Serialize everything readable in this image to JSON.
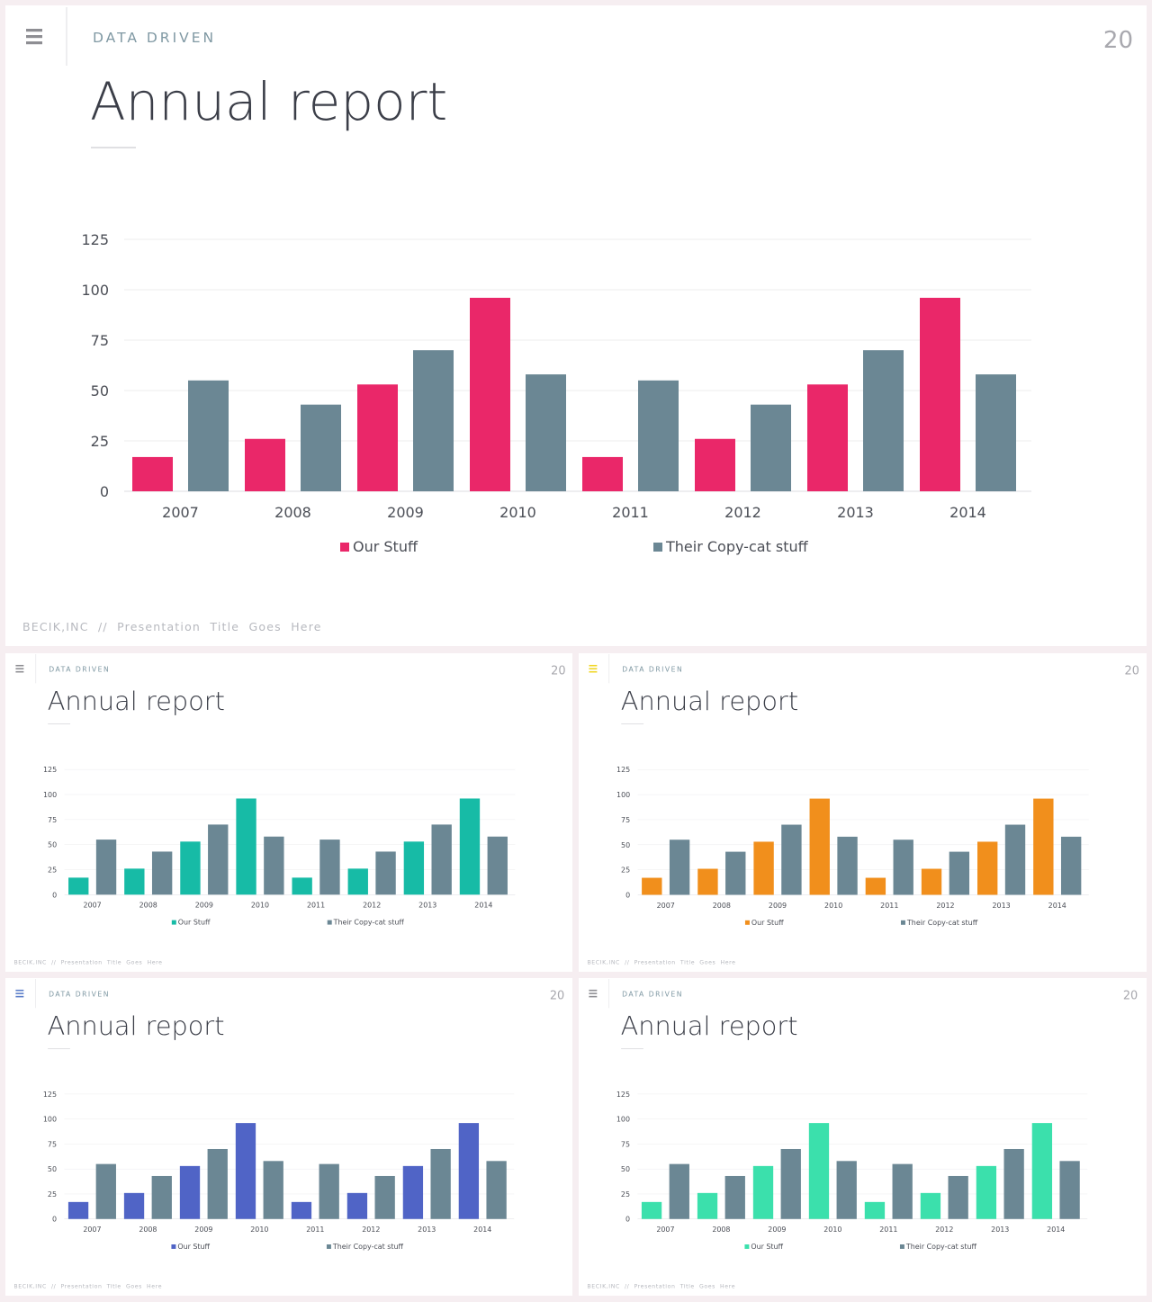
{
  "slide": {
    "section_label": "DATA DRIVEN",
    "title": "Annual report",
    "page_number": "20",
    "footer": "BECIK,INC  //  Presentation  Title  Goes  Here"
  },
  "colors": {
    "series_2": "#6b8794",
    "variants": [
      "#ea2769",
      "#17bba6",
      "#f18f1c",
      "#5064c6",
      "#3be0ac"
    ],
    "menu_icon": [
      "#8e8e93",
      "#8e8e93",
      "#f0d625",
      "#5b7ec9",
      "#8e8e93"
    ]
  },
  "chart_data": {
    "type": "bar",
    "categories": [
      "2007",
      "2008",
      "2009",
      "2010",
      "2011",
      "2012",
      "2013",
      "2014"
    ],
    "series": [
      {
        "name": "Our Stuff",
        "values": [
          17,
          26,
          53,
          96,
          17,
          26,
          53,
          96
        ]
      },
      {
        "name": "Their Copy-cat stuff",
        "values": [
          55,
          43,
          70,
          58,
          55,
          43,
          70,
          58
        ]
      }
    ],
    "yticks": [
      "0",
      "25",
      "50",
      "75",
      "100",
      "125"
    ],
    "ylim": [
      0,
      125
    ],
    "grid": true,
    "legend_position": "bottom"
  }
}
